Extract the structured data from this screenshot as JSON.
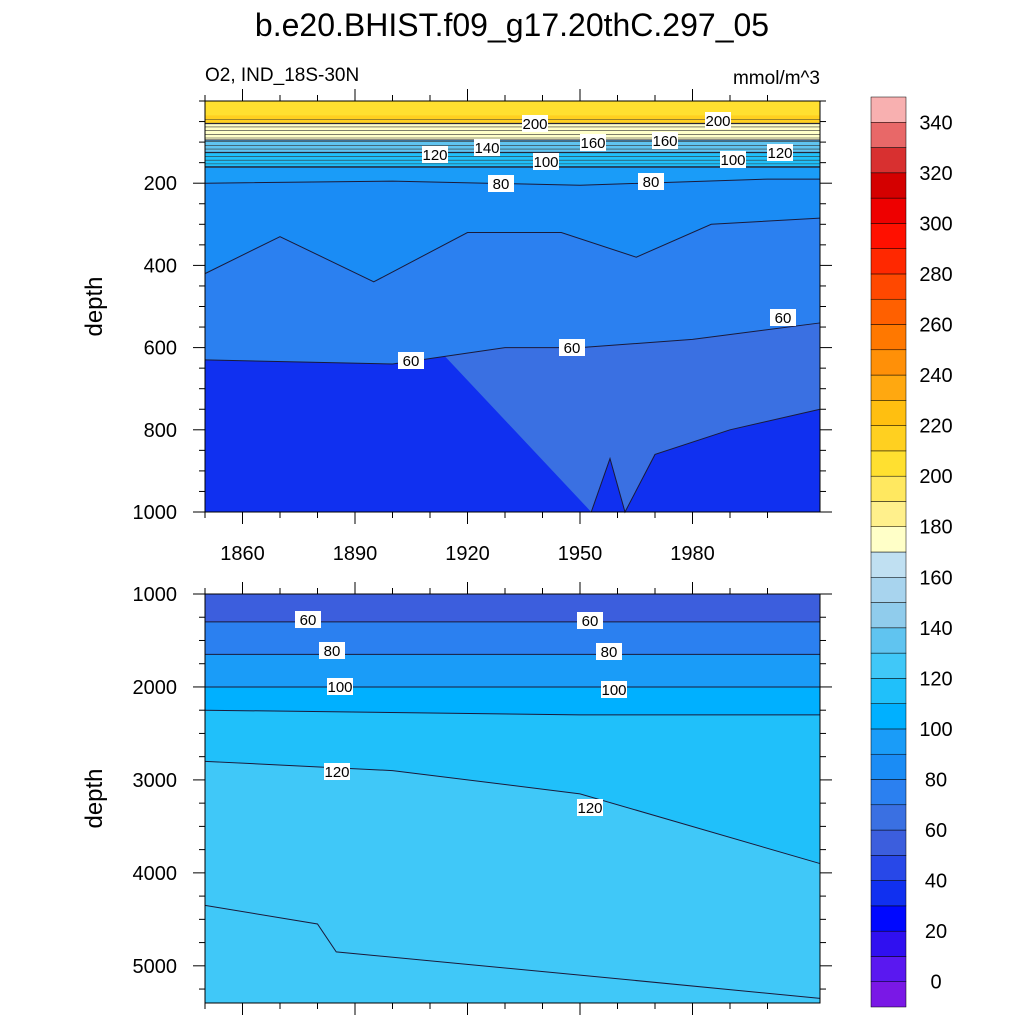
{
  "title": "b.e20.BHIST.f09_g17.20thC.297_05",
  "left_subtitle": "O2, IND_18S-30N",
  "right_subtitle": "mmol/m^3",
  "chart_data": [
    {
      "type": "heatmap",
      "panel": "upper",
      "xlabel": "",
      "ylabel": "depth",
      "xlim": [
        1850,
        2014
      ],
      "ylim": [
        1000,
        0
      ],
      "x_ticks": [
        "1860",
        "1890",
        "1920",
        "1950",
        "1980"
      ],
      "y_ticks": [
        "200",
        "400",
        "600",
        "800",
        "1000"
      ],
      "contour_labels": [
        "200",
        "200",
        "160",
        "160",
        "140",
        "120",
        "120",
        "100",
        "100",
        "80",
        "80",
        "60",
        "60",
        "60"
      ],
      "contours": [
        {
          "level": 200,
          "depth": [
            [
              1850,
              55
            ],
            [
              2014,
              55
            ]
          ]
        },
        {
          "level": 160,
          "depth": [
            [
              1850,
              95
            ],
            [
              2014,
              95
            ]
          ]
        },
        {
          "level": 120,
          "depth": [
            [
              1850,
              125
            ],
            [
              2014,
              125
            ]
          ]
        },
        {
          "level": 100,
          "depth": [
            [
              1850,
              160
            ],
            [
              2014,
              160
            ]
          ]
        },
        {
          "level": 80,
          "depth": [
            [
              1850,
              200
            ],
            [
              1900,
              195
            ],
            [
              1950,
              205
            ],
            [
              2000,
              190
            ],
            [
              2014,
              190
            ]
          ]
        },
        {
          "level": 70,
          "depth": [
            [
              1850,
              420
            ],
            [
              1870,
              330
            ],
            [
              1895,
              440
            ],
            [
              1920,
              320
            ],
            [
              1945,
              320
            ],
            [
              1965,
              380
            ],
            [
              1985,
              300
            ],
            [
              2014,
              285
            ]
          ]
        },
        {
          "level": 60,
          "depth": [
            [
              1850,
              630
            ],
            [
              1900,
              640
            ],
            [
              1930,
              600
            ],
            [
              1950,
              600
            ],
            [
              1980,
              580
            ],
            [
              2014,
              540
            ]
          ]
        },
        {
          "level": 50,
          "depth": [
            [
              1953,
              1000
            ],
            [
              1958,
              870
            ],
            [
              1962,
              1000
            ],
            [
              1970,
              860
            ],
            [
              1990,
              800
            ],
            [
              2014,
              750
            ]
          ]
        }
      ]
    },
    {
      "type": "heatmap",
      "panel": "lower",
      "xlabel": "",
      "ylabel": "depth",
      "xlim": [
        1850,
        2014
      ],
      "ylim": [
        5400,
        1000
      ],
      "y_ticks": [
        "1000",
        "2000",
        "3000",
        "4000",
        "5000"
      ],
      "contour_labels": [
        "60",
        "60",
        "80",
        "80",
        "100",
        "100",
        "120",
        "120"
      ],
      "contours": [
        {
          "level": 60,
          "depth": [
            [
              1850,
              1300
            ],
            [
              2014,
              1300
            ]
          ]
        },
        {
          "level": 80,
          "depth": [
            [
              1850,
              1650
            ],
            [
              2014,
              1650
            ]
          ]
        },
        {
          "level": 100,
          "depth": [
            [
              1850,
              2000
            ],
            [
              2014,
              2000
            ]
          ]
        },
        {
          "level": 110,
          "depth": [
            [
              1850,
              2250
            ],
            [
              1950,
              2300
            ],
            [
              2014,
              2300
            ]
          ]
        },
        {
          "level": 120,
          "depth": [
            [
              1850,
              2800
            ],
            [
              1900,
              2900
            ],
            [
              1950,
              3150
            ],
            [
              2014,
              3900
            ]
          ]
        },
        {
          "level": 130,
          "depth": [
            [
              1850,
              4350
            ],
            [
              1880,
              4550
            ],
            [
              1885,
              4850
            ],
            [
              1950,
              5100
            ],
            [
              2014,
              5350
            ]
          ]
        }
      ]
    }
  ],
  "colorbar": {
    "labels": [
      "0",
      "20",
      "40",
      "60",
      "80",
      "100",
      "120",
      "140",
      "160",
      "180",
      "200",
      "220",
      "240",
      "260",
      "280",
      "300",
      "320",
      "340"
    ],
    "colors": [
      "#7a18e6",
      "#5a18f0",
      "#3010f0",
      "#0008ff",
      "#1030f0",
      "#2848e8",
      "#3c5edd",
      "#3a70e2",
      "#2b80f0",
      "#1a8cf5",
      "#1a9cf8",
      "#00b0ff",
      "#20c0fa",
      "#40c8f8",
      "#60c4f0",
      "#90ccec",
      "#a8d4ee",
      "#c0e0f2",
      "#ffffc8",
      "#fff08c",
      "#ffe860",
      "#ffe030",
      "#ffd020",
      "#ffbf10",
      "#ffa810",
      "#ff9008",
      "#ff7800",
      "#ff6000",
      "#ff4800",
      "#ff2800",
      "#ff1000",
      "#ee0000",
      "#d40000",
      "#d83030",
      "#e86868",
      "#f8b0b0"
    ]
  }
}
